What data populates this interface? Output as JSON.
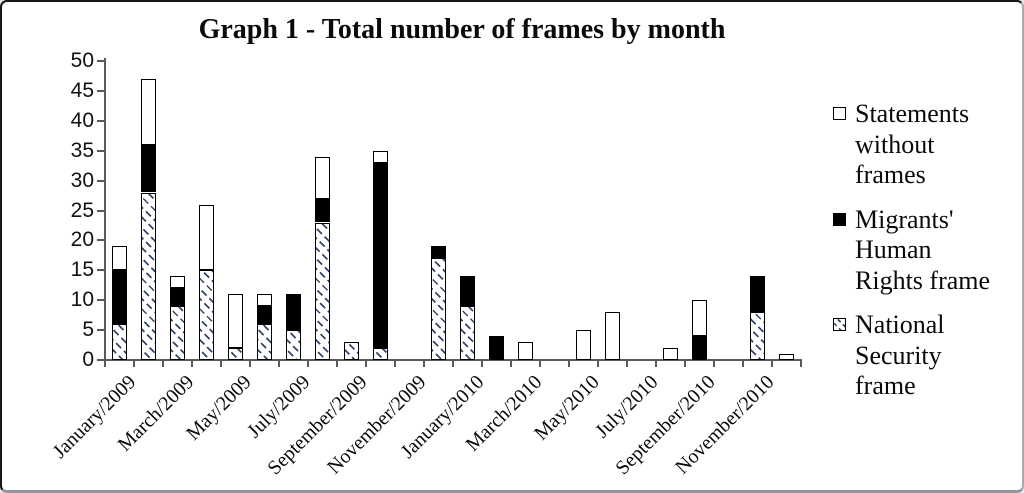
{
  "chart_data": {
    "type": "bar",
    "stacked": true,
    "title": "Graph 1 - Total number of frames by month",
    "categories": [
      "January/2009",
      "February/2009",
      "March/2009",
      "April/2009",
      "May/2009",
      "June/2009",
      "July/2009",
      "August/2009",
      "September/2009",
      "October/2009",
      "November/2009",
      "December/2009",
      "January/2010",
      "February/2010",
      "March/2010",
      "April/2010",
      "May/2010",
      "June/2010",
      "July/2010",
      "August/2010",
      "September/2010",
      "October/2010",
      "November/2010",
      "December/2010"
    ],
    "x_tick_labels_shown": [
      "January/2009",
      "March/2009",
      "May/2009",
      "July/2009",
      "September/2009",
      "November/2009",
      "January/2010",
      "March/2010",
      "May/2010",
      "July/2010",
      "September/2010",
      "November/2010"
    ],
    "series": [
      {
        "name": "National Security frame",
        "style": "hatch",
        "values": [
          6,
          28,
          9,
          15,
          2,
          6,
          5,
          23,
          3,
          2,
          0,
          17,
          9,
          0,
          0,
          0,
          0,
          0,
          0,
          0,
          0,
          0,
          8,
          0
        ]
      },
      {
        "name": "Migrants' Human Rights frame",
        "style": "black",
        "values": [
          9,
          8,
          3,
          0,
          0,
          3,
          6,
          4,
          0,
          31,
          0,
          2,
          5,
          4,
          0,
          0,
          0,
          0,
          0,
          0,
          4,
          0,
          6,
          0
        ]
      },
      {
        "name": "Statements without frames",
        "style": "white",
        "values": [
          4,
          11,
          2,
          11,
          9,
          2,
          0,
          7,
          0,
          2,
          0,
          0,
          0,
          0,
          3,
          0,
          5,
          8,
          0,
          2,
          6,
          0,
          0,
          1
        ]
      }
    ],
    "totals": [
      19,
      47,
      14,
      26,
      11,
      11,
      11,
      34,
      3,
      35,
      0,
      19,
      14,
      4,
      3,
      0,
      5,
      8,
      0,
      2,
      10,
      0,
      14,
      1
    ],
    "ylim": [
      0,
      50
    ],
    "y_ticks": [
      0,
      5,
      10,
      15,
      20,
      25,
      30,
      35,
      40,
      45,
      50
    ],
    "grid": false,
    "legend_position": "right"
  },
  "legend": {
    "items": [
      {
        "label": "Statements without frames",
        "lines": [
          "Statements",
          "without",
          "frames"
        ],
        "swatch": "white"
      },
      {
        "label": "Migrants' Human Rights frame",
        "lines": [
          "Migrants'",
          "Human",
          "Rights frame"
        ],
        "swatch": "black"
      },
      {
        "label": "National Security frame",
        "lines": [
          "National",
          "Security",
          "frame"
        ],
        "swatch": "hatch"
      }
    ]
  },
  "colors": {
    "bar_fill_black": "#000000",
    "bar_fill_white": "#ffffff",
    "hatch_stroke": "#33456a",
    "bar_outline": "#000000",
    "axis": "#5a5a5a",
    "text": "#0a0a0a",
    "background": "#ffffff"
  }
}
